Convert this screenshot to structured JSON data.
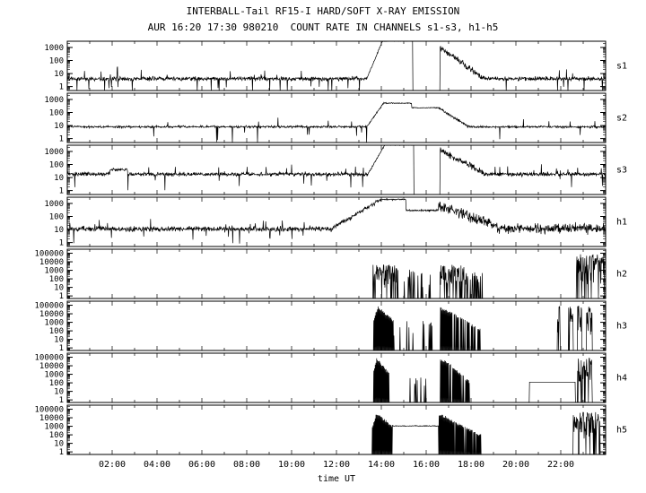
{
  "title": "INTERBALL-Tail RF15-I HARD/SOFT X-RAY EMISSION",
  "subtitle": "AUR 16:20 17:30 980210  COUNT RATE IN CHANNELS s1-s3, h1-h5",
  "chart_data": {
    "type": "line",
    "title": "INTERBALL-Tail RF15-I HARD/SOFT X-RAY EMISSION",
    "subtitle": "AUR 16:20 17:30 980210  COUNT RATE IN CHANNELS s1-s3, h1-h5",
    "xlabel": "time UT",
    "x_range_hours": [
      0,
      24
    ],
    "x_major_ticks": [
      {
        "hour": 2,
        "label": "02:00"
      },
      {
        "hour": 4,
        "label": "04:00"
      },
      {
        "hour": 6,
        "label": "06:00"
      },
      {
        "hour": 8,
        "label": "08:00"
      },
      {
        "hour": 10,
        "label": "10:00"
      },
      {
        "hour": 12,
        "label": "12:00"
      },
      {
        "hour": 14,
        "label": "14:00"
      },
      {
        "hour": 16,
        "label": "16:00"
      },
      {
        "hour": 18,
        "label": "18:00"
      },
      {
        "hour": 20,
        "label": "20:00"
      },
      {
        "hour": 22,
        "label": "22:00"
      }
    ],
    "background": "#ffffff",
    "line_color": "#000000",
    "grid": false,
    "y_scale": "log",
    "panels": [
      {
        "label": "s1",
        "ylim": [
          0.5,
          3000
        ],
        "y_ticks": [
          {
            "v": 1,
            "label": "1"
          },
          {
            "v": 10,
            "label": "10"
          },
          {
            "v": 100,
            "label": "100"
          },
          {
            "v": 1000,
            "label": "1000"
          }
        ],
        "baseline": {
          "level": 4,
          "noise": 0.13,
          "spike_prob": 0.025
        },
        "events": [
          {
            "type": "rise",
            "t0": 13.35,
            "t1": 14.05,
            "from": 4,
            "to": 3000,
            "noise": 0.04
          },
          {
            "type": "plateau",
            "t0": 14.05,
            "t1": 15.4,
            "level": 3000,
            "noise": 0.02
          },
          {
            "type": "gap",
            "t0": 15.4,
            "t1": 16.62
          },
          {
            "type": "decay",
            "t0": 16.62,
            "t1": 18.6,
            "from": 1000,
            "to": 4,
            "noise": 0.15
          }
        ]
      },
      {
        "label": "s2",
        "ylim": [
          0.5,
          3000
        ],
        "y_ticks": [
          {
            "v": 1,
            "label": "1"
          },
          {
            "v": 10,
            "label": "10"
          },
          {
            "v": 100,
            "label": "100"
          },
          {
            "v": 1000,
            "label": "1000"
          }
        ],
        "baseline": {
          "level": 8,
          "noise": 0.07,
          "spike_prob": 0.012
        },
        "events": [
          {
            "type": "rise",
            "t0": 13.35,
            "t1": 14.1,
            "from": 8,
            "to": 520,
            "noise": 0.04
          },
          {
            "type": "plateau",
            "t0": 14.1,
            "t1": 15.35,
            "level": 520,
            "noise": 0.03
          },
          {
            "type": "plateau",
            "t0": 15.35,
            "t1": 16.55,
            "level": 230,
            "noise": 0.03
          },
          {
            "type": "decay",
            "t0": 16.55,
            "t1": 17.9,
            "from": 230,
            "to": 8,
            "noise": 0.06
          }
        ]
      },
      {
        "label": "s3",
        "ylim": [
          0.5,
          3000
        ],
        "y_ticks": [
          {
            "v": 1,
            "label": "1"
          },
          {
            "v": 10,
            "label": "10"
          },
          {
            "v": 100,
            "label": "100"
          },
          {
            "v": 1000,
            "label": "1000"
          }
        ],
        "baseline": {
          "level": 18,
          "noise": 0.12,
          "spike_prob": 0.02
        },
        "events": [
          {
            "type": "plateau",
            "t0": 1.9,
            "t1": 2.7,
            "level": 40,
            "noise": 0.1
          },
          {
            "type": "rise",
            "t0": 13.4,
            "t1": 14.15,
            "from": 18,
            "to": 3000,
            "noise": 0.04
          },
          {
            "type": "plateau",
            "t0": 14.15,
            "t1": 15.45,
            "level": 3000,
            "noise": 0.02
          },
          {
            "type": "gap",
            "t0": 15.45,
            "t1": 16.62
          },
          {
            "type": "decay",
            "t0": 16.62,
            "t1": 18.7,
            "from": 1300,
            "to": 18,
            "noise": 0.15
          }
        ]
      },
      {
        "label": "h1",
        "ylim": [
          0.5,
          3000
        ],
        "y_ticks": [
          {
            "v": 1,
            "label": "1"
          },
          {
            "v": 10,
            "label": "10"
          },
          {
            "v": 100,
            "label": "100"
          },
          {
            "v": 1000,
            "label": "1000"
          }
        ],
        "baseline": {
          "level": 11,
          "noise": 0.16,
          "spike_prob": 0.03
        },
        "events": [
          {
            "type": "rise",
            "t0": 11.8,
            "t1": 14.0,
            "from": 12,
            "to": 2000,
            "noise": 0.1
          },
          {
            "type": "plateau",
            "t0": 14.0,
            "t1": 15.1,
            "level": 2000,
            "noise": 0.04
          },
          {
            "type": "plateau",
            "t0": 15.1,
            "t1": 16.55,
            "level": 300,
            "noise": 0.06
          },
          {
            "type": "decay",
            "t0": 16.55,
            "t1": 19.2,
            "from": 700,
            "to": 15,
            "noise": 0.25
          },
          {
            "type": "plateau",
            "t0": 19.2,
            "t1": 24,
            "level": 12,
            "noise": 0.3
          }
        ]
      },
      {
        "label": "h2",
        "ylim": [
          0.5,
          300000
        ],
        "y_ticks": [
          {
            "v": 1,
            "label": "1"
          },
          {
            "v": 10,
            "label": "10"
          },
          {
            "v": 100,
            "label": "100"
          },
          {
            "v": 1000,
            "label": "1000"
          },
          {
            "v": 10000,
            "label": "10000"
          },
          {
            "v": 100000,
            "label": "100000"
          }
        ],
        "baseline": {
          "level": 0.5,
          "noise": 0,
          "spike_prob": 0
        },
        "events": [
          {
            "type": "vspikes",
            "t0": 13.62,
            "t1": 14.7,
            "max": 5000,
            "min": 5,
            "density": 0.85
          },
          {
            "type": "vspikes",
            "t0": 14.7,
            "t1": 16.35,
            "max": 1200,
            "min": 5,
            "density": 0.1
          },
          {
            "type": "vspikes",
            "t0": 16.62,
            "t1": 17.7,
            "max": 5000,
            "min": 5,
            "density": 0.8
          },
          {
            "type": "vspikes",
            "t0": 17.7,
            "t1": 18.5,
            "max": 600,
            "min": 5,
            "density": 0.4
          },
          {
            "type": "vspikes",
            "t0": 22.7,
            "t1": 23.95,
            "max": 80000,
            "min": 10,
            "density": 0.85
          }
        ]
      },
      {
        "label": "h3",
        "ylim": [
          0.5,
          300000
        ],
        "y_ticks": [
          {
            "v": 1,
            "label": "1"
          },
          {
            "v": 10,
            "label": "10"
          },
          {
            "v": 100,
            "label": "100"
          },
          {
            "v": 1000,
            "label": "1000"
          },
          {
            "v": 10000,
            "label": "10000"
          },
          {
            "v": 100000,
            "label": "100000"
          }
        ],
        "baseline": {
          "level": 0.5,
          "noise": 0,
          "spike_prob": 0
        },
        "events": [
          {
            "type": "blob",
            "t0": 13.65,
            "t1": 13.85,
            "p0": 2000,
            "p1": 80000
          },
          {
            "type": "blob",
            "t0": 13.85,
            "t1": 14.55,
            "p0": 80000,
            "p1": 2000
          },
          {
            "type": "vspikes",
            "t0": 14.55,
            "t1": 16.35,
            "max": 1500,
            "min": 5,
            "density": 0.08
          },
          {
            "type": "blob",
            "t0": 16.62,
            "t1": 17.15,
            "p0": 60000,
            "p1": 15000
          },
          {
            "type": "blob",
            "t0": 17.15,
            "t1": 18.4,
            "p0": 15000,
            "p1": 200,
            "density": 0.75
          },
          {
            "type": "vspikes",
            "t0": 21.85,
            "t1": 21.97,
            "max": 80000,
            "min": 20,
            "density": 0.9
          },
          {
            "type": "vspikes",
            "t0": 22.35,
            "t1": 22.55,
            "max": 80000,
            "min": 20,
            "density": 0.9
          },
          {
            "type": "vspikes",
            "t0": 22.75,
            "t1": 22.95,
            "max": 80000,
            "min": 20,
            "density": 0.9
          },
          {
            "type": "vspikes",
            "t0": 23.15,
            "t1": 23.4,
            "max": 80000,
            "min": 20,
            "density": 0.9
          }
        ]
      },
      {
        "label": "h4",
        "ylim": [
          0.5,
          300000
        ],
        "y_ticks": [
          {
            "v": 1,
            "label": "1"
          },
          {
            "v": 10,
            "label": "10"
          },
          {
            "v": 100,
            "label": "100"
          },
          {
            "v": 1000,
            "label": "1000"
          },
          {
            "v": 10000,
            "label": "10000"
          },
          {
            "v": 100000,
            "label": "100000"
          }
        ],
        "baseline": {
          "level": 0.5,
          "noise": 0,
          "spike_prob": 0
        },
        "events": [
          {
            "type": "blob",
            "t0": 13.65,
            "t1": 13.8,
            "p0": 3000,
            "p1": 100000
          },
          {
            "type": "blob",
            "t0": 13.8,
            "t1": 14.35,
            "p0": 100000,
            "p1": 1500
          },
          {
            "type": "vspikes",
            "t0": 14.35,
            "t1": 16.3,
            "max": 800,
            "min": 5,
            "density": 0.05
          },
          {
            "type": "blob",
            "t0": 16.62,
            "t1": 17.0,
            "p0": 80000,
            "p1": 30000
          },
          {
            "type": "blob",
            "t0": 17.0,
            "t1": 17.95,
            "p0": 30000,
            "p1": 150,
            "density": 0.75
          },
          {
            "type": "plateau",
            "t0": 20.6,
            "t1": 22.65,
            "level": 120,
            "noise": 0
          },
          {
            "type": "vspikes",
            "t0": 22.75,
            "t1": 23.4,
            "max": 80000,
            "min": 20,
            "density": 0.85
          }
        ]
      },
      {
        "label": "h5",
        "ylim": [
          0.5,
          300000
        ],
        "y_ticks": [
          {
            "v": 1,
            "label": "1"
          },
          {
            "v": 10,
            "label": "10"
          },
          {
            "v": 100,
            "label": "100"
          },
          {
            "v": 1000,
            "label": "1000"
          },
          {
            "v": 10000,
            "label": "10000"
          },
          {
            "v": 100000,
            "label": "100000"
          }
        ],
        "baseline": {
          "level": 0.5,
          "noise": 0,
          "spike_prob": 0
        },
        "events": [
          {
            "type": "blob",
            "t0": 13.6,
            "t1": 13.78,
            "p0": 800,
            "p1": 40000
          },
          {
            "type": "blob",
            "t0": 13.78,
            "t1": 14.5,
            "p0": 40000,
            "p1": 1500
          },
          {
            "type": "plateau",
            "t0": 14.5,
            "t1": 16.55,
            "level": 1100,
            "noise": 0.04
          },
          {
            "type": "blob",
            "t0": 16.55,
            "t1": 17.05,
            "p0": 30000,
            "p1": 12000
          },
          {
            "type": "blob",
            "t0": 17.05,
            "t1": 18.45,
            "p0": 8000,
            "p1": 120,
            "density": 0.85
          },
          {
            "type": "vspikes",
            "t0": 22.55,
            "t1": 23.75,
            "max": 50000,
            "min": 10,
            "density": 0.8
          }
        ]
      }
    ]
  }
}
